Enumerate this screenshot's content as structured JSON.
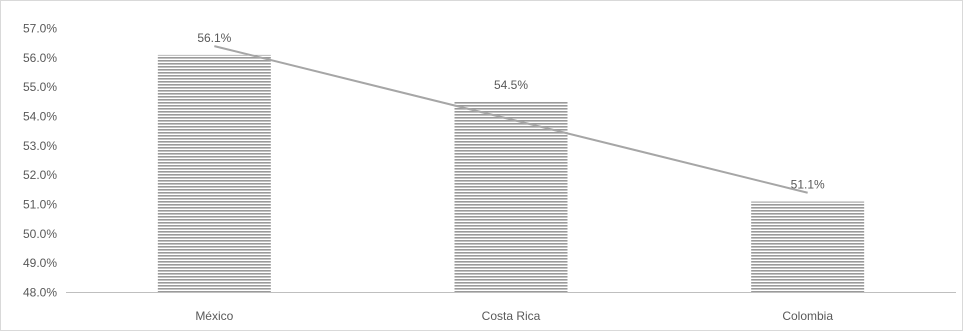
{
  "chart_data": {
    "type": "bar",
    "categories": [
      "México",
      "Costa Rica",
      "Colombia"
    ],
    "values": [
      56.1,
      54.5,
      51.1
    ],
    "value_labels": [
      "56.1%",
      "54.5%",
      "51.1%"
    ],
    "trendline": "linear",
    "ylim": [
      48.0,
      57.0
    ],
    "yticks": [
      "48.0%",
      "49.0%",
      "50.0%",
      "51.0%",
      "52.0%",
      "53.0%",
      "54.0%",
      "55.0%",
      "56.0%",
      "57.0%"
    ],
    "grid": false,
    "legend": "none",
    "title": "",
    "xlabel": "",
    "ylabel": "",
    "colors": {
      "bar_fill": "#bfbfbf",
      "bar_stripe": "#8c8c8c",
      "trendline": "#a6a6a6",
      "axis": "#bfbfbf",
      "text": "#595959",
      "border": "#d9d9d9"
    }
  }
}
